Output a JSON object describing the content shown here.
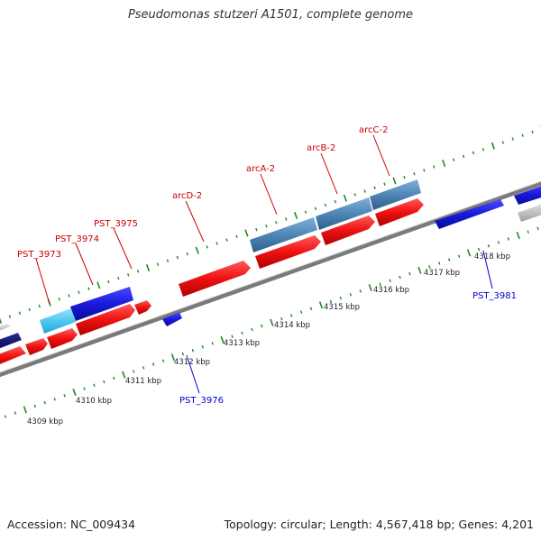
{
  "title": "Pseudomonas stutzeri A1501, complete genome",
  "footer": {
    "accession": "Accession: NC_009434",
    "summary": "Topology: circular; Length: 4,567,418 bp; Genes: 4,201"
  },
  "colors": {
    "forward_cds": "#ee1111",
    "reverse_cds": "#1a1add",
    "rna": "#4f86b6",
    "light_blue": "#33c3f0",
    "navy": "#101070",
    "grey": "#b8b8b8",
    "backbone": "#808080",
    "ticks": "#1f8a1f",
    "label_forward": "#cc0000",
    "label_reverse": "#0000cc"
  },
  "scale_labels": [
    "4309 kbp",
    "4310 kbp",
    "4311 kbp",
    "4312 kbp",
    "4313 kbp",
    "4314 kbp",
    "4315 kbp",
    "4316 kbp",
    "4317 kbp",
    "4318 kbp"
  ],
  "gene_labels": [
    {
      "text": "PST_3973",
      "strand": "forward"
    },
    {
      "text": "PST_3974",
      "strand": "forward"
    },
    {
      "text": "PST_3975",
      "strand": "forward"
    },
    {
      "text": "arcD-2",
      "strand": "forward"
    },
    {
      "text": "arcA-2",
      "strand": "forward"
    },
    {
      "text": "arcB-2",
      "strand": "forward"
    },
    {
      "text": "arcC-2",
      "strand": "forward"
    },
    {
      "text": "PST_3976",
      "strand": "reverse"
    },
    {
      "text": "PST_3981",
      "strand": "reverse"
    }
  ]
}
